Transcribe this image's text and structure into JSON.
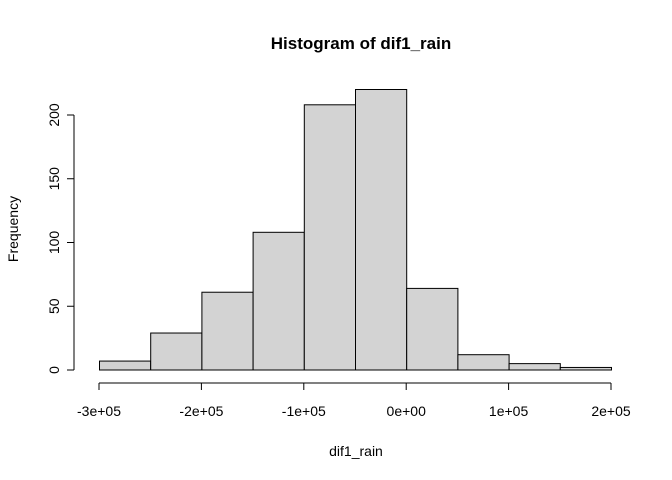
{
  "chart_data": {
    "type": "bar",
    "title": "Histogram of dif1_rain",
    "xlabel": "dif1_rain",
    "ylabel": "Frequency",
    "bins": [
      {
        "x0": -300000,
        "x1": -250000,
        "count": 7
      },
      {
        "x0": -250000,
        "x1": -200000,
        "count": 29
      },
      {
        "x0": -200000,
        "x1": -150000,
        "count": 61
      },
      {
        "x0": -150000,
        "x1": -100000,
        "count": 108
      },
      {
        "x0": -100000,
        "x1": -50000,
        "count": 208
      },
      {
        "x0": -50000,
        "x1": 0,
        "count": 220
      },
      {
        "x0": 0,
        "x1": 50000,
        "count": 64
      },
      {
        "x0": 50000,
        "x1": 100000,
        "count": 12
      },
      {
        "x0": 100000,
        "x1": 150000,
        "count": 5
      },
      {
        "x0": 150000,
        "x1": 200000,
        "count": 2
      }
    ],
    "xlim": [
      -300000,
      200000
    ],
    "ylim": [
      0,
      220
    ],
    "x_ticks": [
      -300000,
      -200000,
      -100000,
      0,
      100000,
      200000
    ],
    "x_tick_labels": [
      "-3e+05",
      "-2e+05",
      "-1e+05",
      "0e+00",
      "1e+05",
      "2e+05"
    ],
    "y_ticks": [
      0,
      50,
      100,
      150,
      200
    ],
    "y_tick_labels": [
      "0",
      "50",
      "100",
      "150",
      "200"
    ],
    "grid": false,
    "bar_fill": "#d3d3d3",
    "bar_stroke": "#000000"
  }
}
